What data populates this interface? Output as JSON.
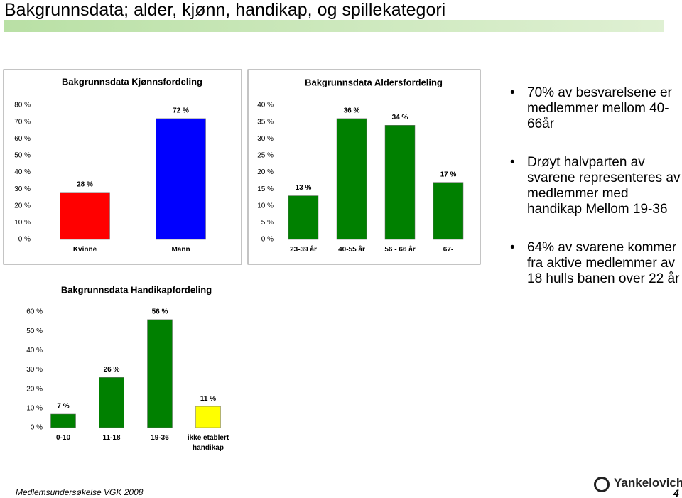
{
  "title": "Bakgrunnsdata; alder, kjønn, handikap, og spillekategori",
  "chart_data": [
    {
      "type": "bar",
      "title": "Bakgrunnsdata Kjønnsfordeling",
      "categories": [
        "Kvinne",
        "Mann"
      ],
      "values": [
        28,
        72
      ],
      "value_labels": [
        "28 %",
        "72 %"
      ],
      "colors": [
        "#ff0000",
        "#0000ff"
      ],
      "ylim": [
        0,
        80
      ],
      "yticks": [
        {
          "value": 0,
          "label": "0 %"
        },
        {
          "value": 10,
          "label": "10 %"
        },
        {
          "value": 20,
          "label": "20 %"
        },
        {
          "value": 30,
          "label": "30 %"
        },
        {
          "value": 40,
          "label": "40 %"
        },
        {
          "value": 50,
          "label": "50 %"
        },
        {
          "value": 60,
          "label": "60 %"
        },
        {
          "value": 70,
          "label": "70 %"
        },
        {
          "value": 80,
          "label": "80 %"
        }
      ]
    },
    {
      "type": "bar",
      "title": "Bakgrunnsdata Aldersfordeling",
      "categories": [
        "23-39 år",
        "40-55 år",
        "56 - 66 år",
        "67-"
      ],
      "values": [
        13,
        36,
        34,
        17
      ],
      "value_labels": [
        "13 %",
        "36 %",
        "34 %",
        "17 %"
      ],
      "colors": [
        "#008000",
        "#008000",
        "#008000",
        "#008000"
      ],
      "ylim": [
        0,
        40
      ],
      "yticks": [
        {
          "value": 0,
          "label": "0 %"
        },
        {
          "value": 5,
          "label": "5 %"
        },
        {
          "value": 10,
          "label": "10 %"
        },
        {
          "value": 15,
          "label": "15 %"
        },
        {
          "value": 20,
          "label": "20 %"
        },
        {
          "value": 25,
          "label": "25 %"
        },
        {
          "value": 30,
          "label": "30 %"
        },
        {
          "value": 35,
          "label": "35 %"
        },
        {
          "value": 40,
          "label": "40 %"
        }
      ]
    },
    {
      "type": "bar",
      "title": "Bakgrunnsdata Handikapfordeling",
      "categories": [
        "0-10",
        "11-18",
        "19-36",
        "ikke etablert handikap"
      ],
      "values": [
        7,
        26,
        56,
        11
      ],
      "value_labels": [
        "7 %",
        "26 %",
        "56 %",
        "11 %"
      ],
      "colors": [
        "#008000",
        "#008000",
        "#008000",
        "#ffff00"
      ],
      "ylim": [
        0,
        60
      ],
      "yticks": [
        {
          "value": 0,
          "label": "0 %"
        },
        {
          "value": 10,
          "label": "10 %"
        },
        {
          "value": 20,
          "label": "20 %"
        },
        {
          "value": 30,
          "label": "30 %"
        },
        {
          "value": 40,
          "label": "40 %"
        },
        {
          "value": 50,
          "label": "50 %"
        },
        {
          "value": 60,
          "label": "60 %"
        }
      ]
    }
  ],
  "bullets": [
    "70% av besvarelsene er medlemmer mellom 40-66år",
    "Drøyt halvparten av svarene representeres av medlemmer med handikap Mellom 19-36",
    "64% av svarene kommer fra aktive medlemmer av 18 hulls banen over 22 år"
  ],
  "footer": {
    "source": "Medlemsundersøkelse VGK 2008",
    "logo": "Yankelovich",
    "page": "4"
  }
}
